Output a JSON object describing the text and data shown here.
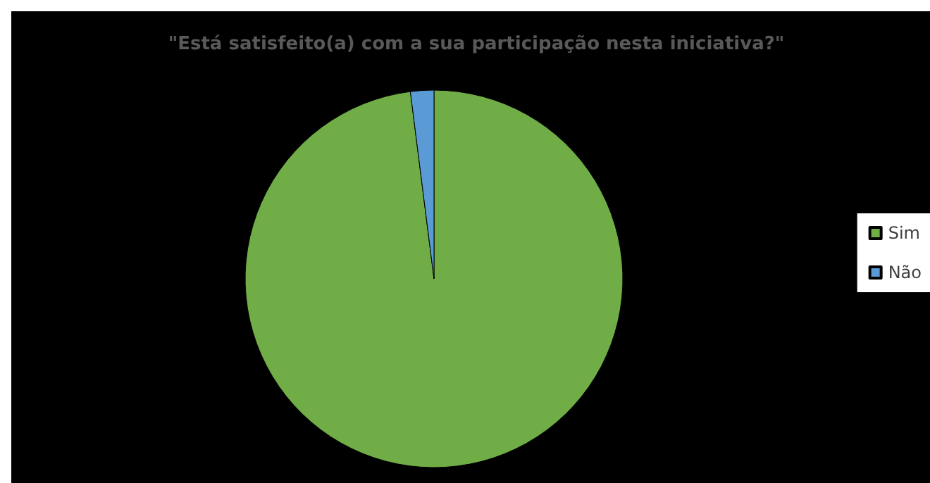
{
  "chart_data": {
    "type": "pie",
    "title": "\"Está satisfeito(a) com a sua participação nesta iniciativa?\"",
    "categories": [
      "Sim",
      "Não"
    ],
    "values": [
      98,
      2
    ],
    "colors": [
      "#70ad47",
      "#5b9bd5"
    ],
    "legend": "right"
  }
}
